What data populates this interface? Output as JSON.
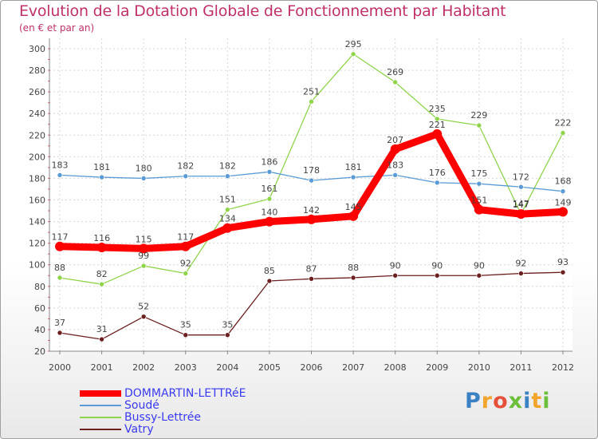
{
  "chart_data": {
    "type": "line",
    "title": "Evolution de la Dotation Globale de Fonctionnement par Habitant",
    "subtitle": "(en € et par an)",
    "categories": [
      "2000",
      "2001",
      "2002",
      "2003",
      "2004",
      "2005",
      "2006",
      "2007",
      "2008",
      "2009",
      "2010",
      "2011",
      "2012"
    ],
    "ylim": [
      20,
      300
    ],
    "yticks": [
      20,
      40,
      60,
      80,
      100,
      120,
      140,
      160,
      180,
      200,
      220,
      240,
      260,
      280,
      300
    ],
    "grid": true,
    "series": [
      {
        "name": "DOMMARTIN-LETTRéE",
        "color": "#ff0000",
        "values": [
          117,
          116,
          115,
          117,
          134,
          140,
          142,
          145,
          207,
          221,
          151,
          147,
          149
        ]
      },
      {
        "name": "Soudé",
        "color": "#5b9bd5",
        "values": [
          183,
          181,
          180,
          182,
          182,
          186,
          178,
          181,
          183,
          176,
          175,
          172,
          168
        ]
      },
      {
        "name": "Bussy-Lettrée",
        "color": "#8fd44a",
        "values": [
          88,
          82,
          99,
          92,
          151,
          161,
          251,
          295,
          269,
          235,
          229,
          147,
          222
        ]
      },
      {
        "name": "Vatry",
        "color": "#6b1f1f",
        "values": [
          37,
          31,
          52,
          35,
          35,
          85,
          87,
          88,
          90,
          90,
          90,
          92,
          93
        ]
      }
    ]
  },
  "logo": {
    "text": "Proxiti",
    "letters": [
      "P",
      "r",
      "o",
      "x",
      "i",
      "t",
      "i"
    ]
  }
}
